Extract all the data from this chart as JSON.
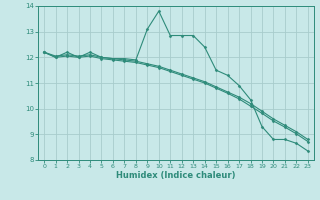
{
  "xlabel": "Humidex (Indice chaleur)",
  "x_values": [
    0,
    1,
    2,
    3,
    4,
    5,
    6,
    7,
    8,
    9,
    10,
    11,
    12,
    13,
    14,
    15,
    16,
    17,
    18,
    19,
    20,
    21,
    22,
    23
  ],
  "line1_y": [
    12.2,
    12.0,
    12.2,
    12.0,
    12.2,
    12.0,
    11.95,
    11.95,
    11.9,
    13.1,
    13.8,
    12.85,
    12.85,
    12.85,
    12.4,
    11.5,
    11.3,
    10.9,
    10.35,
    9.3,
    8.8,
    8.8,
    8.65,
    8.35
  ],
  "line2_y": [
    12.2,
    12.05,
    12.1,
    12.05,
    12.1,
    12.0,
    11.95,
    11.9,
    11.85,
    11.75,
    11.65,
    11.5,
    11.35,
    11.2,
    11.05,
    10.85,
    10.65,
    10.45,
    10.2,
    9.9,
    9.6,
    9.35,
    9.1,
    8.8
  ],
  "line3_y": [
    12.2,
    12.0,
    12.05,
    12.0,
    12.05,
    11.95,
    11.9,
    11.85,
    11.8,
    11.7,
    11.6,
    11.45,
    11.3,
    11.15,
    11.0,
    10.8,
    10.6,
    10.38,
    10.1,
    9.82,
    9.52,
    9.28,
    9.02,
    8.72
  ],
  "line_color": "#2e8b7a",
  "bg_color": "#c8e8e8",
  "grid_color": "#a8cccc",
  "ylim": [
    8,
    14
  ],
  "yticks": [
    8,
    9,
    10,
    11,
    12,
    13,
    14
  ],
  "xticks": [
    0,
    1,
    2,
    3,
    4,
    5,
    6,
    7,
    8,
    9,
    10,
    11,
    12,
    13,
    14,
    15,
    16,
    17,
    18,
    19,
    20,
    21,
    22,
    23
  ],
  "marker": "D",
  "markersize": 1.5,
  "linewidth": 0.8
}
